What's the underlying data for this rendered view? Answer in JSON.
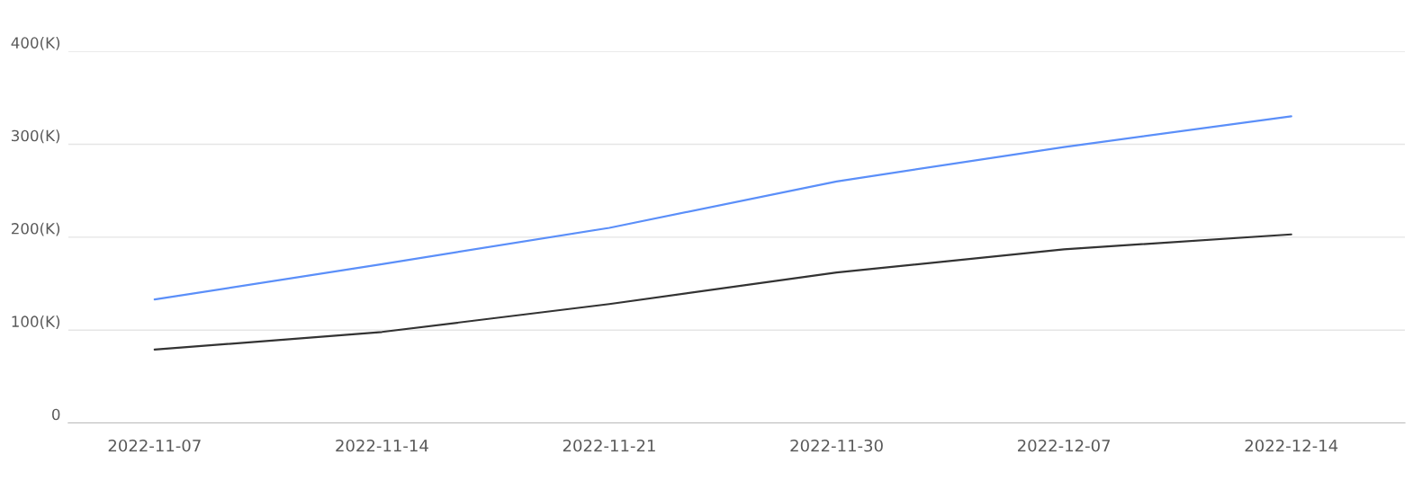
{
  "chart_data": {
    "type": "line",
    "categories": [
      "2022-11-07",
      "2022-11-14",
      "2022-11-21",
      "2022-11-30",
      "2022-12-07",
      "2022-12-14"
    ],
    "series": [
      {
        "color": "#5b8ff9",
        "values": [
          133,
          171,
          210,
          260,
          297,
          330
        ]
      },
      {
        "color": "#333333",
        "values": [
          79,
          98,
          128,
          162,
          187,
          203
        ]
      }
    ],
    "ylim": [
      0,
      400
    ],
    "yticks": [
      {
        "value": 0,
        "label": "0"
      },
      {
        "value": 100,
        "label": "100(K)"
      },
      {
        "value": 200,
        "label": "200(K)"
      },
      {
        "value": 300,
        "label": "300(K)"
      },
      {
        "value": 400,
        "label": "400(K)"
      }
    ],
    "grid": "y",
    "marker": "none",
    "line_style": "solid"
  }
}
